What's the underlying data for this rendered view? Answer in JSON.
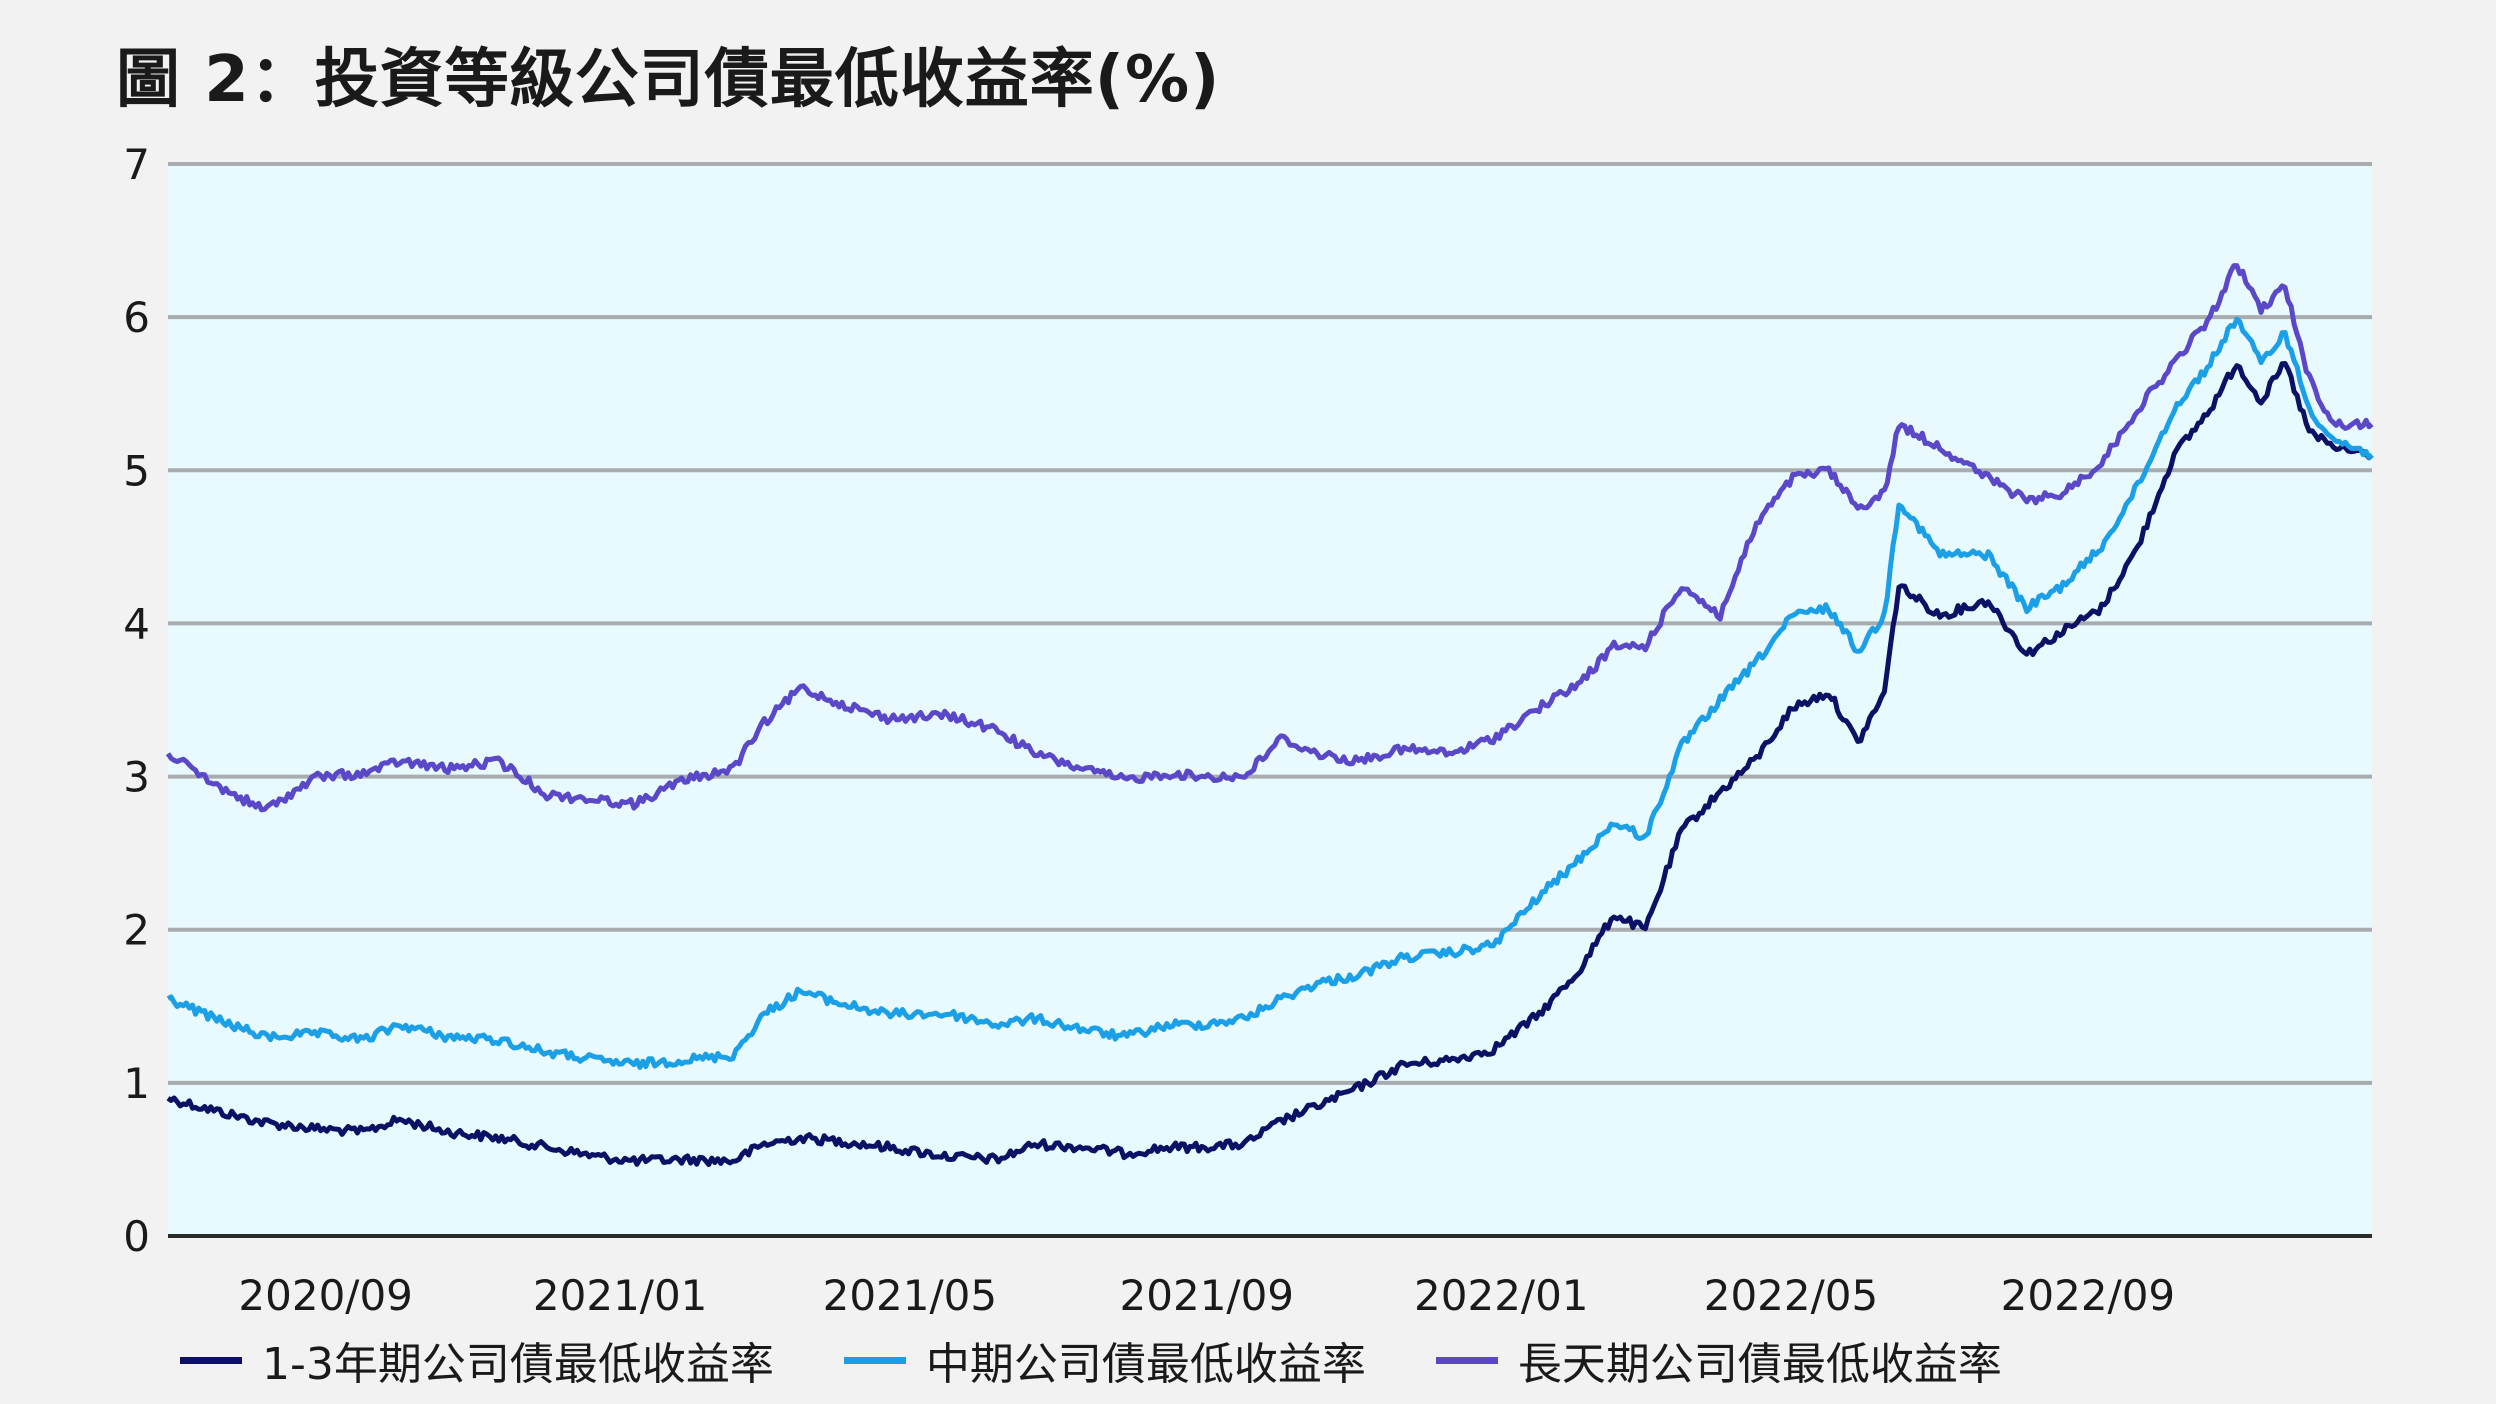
{
  "chart_data": {
    "type": "line",
    "title": "圖 2：投資等級公司債最低收益率(%)",
    "xlabel": "",
    "ylabel": "",
    "ylim": [
      0,
      7
    ],
    "yticks": [
      "0",
      "1",
      "2",
      "3",
      "4",
      "5",
      "6",
      "7"
    ],
    "xlim": [
      "2020-07-01",
      "2022-12-31"
    ],
    "xticks": [
      {
        "date": "2020-09-01",
        "label": "2020/09"
      },
      {
        "date": "2021-01-01",
        "label": "2021/01"
      },
      {
        "date": "2021-05-01",
        "label": "2021/05"
      },
      {
        "date": "2021-09-01",
        "label": "2021/09"
      },
      {
        "date": "2022-01-01",
        "label": "2022/01"
      },
      {
        "date": "2022-05-01",
        "label": "2022/05"
      },
      {
        "date": "2022-09-01",
        "label": "2022/09"
      }
    ],
    "grid": "horizontal",
    "plot_background": "#e8fafd",
    "legend_position": "bottom",
    "series": [
      {
        "name": "1-3年期公司債最低收益率",
        "color": "#0d1166",
        "points": [
          [
            "2020-07-01",
            0.9
          ],
          [
            "2020-07-20",
            0.82
          ],
          [
            "2020-08-10",
            0.74
          ],
          [
            "2020-09-01",
            0.7
          ],
          [
            "2020-09-20",
            0.68
          ],
          [
            "2020-10-05",
            0.76
          ],
          [
            "2020-10-25",
            0.68
          ],
          [
            "2020-11-15",
            0.64
          ],
          [
            "2020-12-05",
            0.58
          ],
          [
            "2020-12-25",
            0.52
          ],
          [
            "2021-01-10",
            0.49
          ],
          [
            "2021-01-31",
            0.5
          ],
          [
            "2021-02-20",
            0.49
          ],
          [
            "2021-03-05",
            0.6
          ],
          [
            "2021-03-20",
            0.64
          ],
          [
            "2021-04-05",
            0.62
          ],
          [
            "2021-04-25",
            0.58
          ],
          [
            "2021-05-20",
            0.52
          ],
          [
            "2021-06-10",
            0.5
          ],
          [
            "2021-06-25",
            0.6
          ],
          [
            "2021-07-15",
            0.58
          ],
          [
            "2021-08-01",
            0.54
          ],
          [
            "2021-08-20",
            0.58
          ],
          [
            "2021-09-01",
            0.58
          ],
          [
            "2021-09-20",
            0.6
          ],
          [
            "2021-10-05",
            0.75
          ],
          [
            "2021-10-20",
            0.85
          ],
          [
            "2021-11-05",
            0.96
          ],
          [
            "2021-11-25",
            1.12
          ],
          [
            "2021-12-15",
            1.15
          ],
          [
            "2022-01-01",
            1.22
          ],
          [
            "2022-01-20",
            1.45
          ],
          [
            "2022-02-05",
            1.72
          ],
          [
            "2022-02-20",
            2.1
          ],
          [
            "2022-03-05",
            2.0
          ],
          [
            "2022-03-20",
            2.65
          ],
          [
            "2022-04-05",
            2.9
          ],
          [
            "2022-04-20",
            3.12
          ],
          [
            "2022-05-05",
            3.45
          ],
          [
            "2022-05-20",
            3.55
          ],
          [
            "2022-06-01",
            3.22
          ],
          [
            "2022-06-12",
            3.55
          ],
          [
            "2022-06-18",
            4.25
          ],
          [
            "2022-07-05",
            4.05
          ],
          [
            "2022-07-25",
            4.15
          ],
          [
            "2022-08-10",
            3.8
          ],
          [
            "2022-08-25",
            3.95
          ],
          [
            "2022-09-10",
            4.1
          ],
          [
            "2022-09-25",
            4.5
          ],
          [
            "2022-10-10",
            5.1
          ],
          [
            "2022-10-25",
            5.4
          ],
          [
            "2022-11-05",
            5.7
          ],
          [
            "2022-11-15",
            5.45
          ],
          [
            "2022-11-25",
            5.7
          ],
          [
            "2022-12-05",
            5.25
          ],
          [
            "2022-12-15",
            5.15
          ],
          [
            "2022-12-31",
            5.1
          ]
        ]
      },
      {
        "name": "中期公司債最低收益率",
        "color": "#1ba0e8",
        "points": [
          [
            "2020-07-01",
            1.55
          ],
          [
            "2020-07-20",
            1.42
          ],
          [
            "2020-08-10",
            1.3
          ],
          [
            "2020-09-01",
            1.32
          ],
          [
            "2020-09-20",
            1.28
          ],
          [
            "2020-10-05",
            1.38
          ],
          [
            "2020-10-25",
            1.3
          ],
          [
            "2020-11-15",
            1.28
          ],
          [
            "2020-12-05",
            1.2
          ],
          [
            "2020-12-25",
            1.15
          ],
          [
            "2021-01-10",
            1.12
          ],
          [
            "2021-01-31",
            1.15
          ],
          [
            "2021-02-20",
            1.18
          ],
          [
            "2021-03-05",
            1.45
          ],
          [
            "2021-03-20",
            1.6
          ],
          [
            "2021-04-05",
            1.52
          ],
          [
            "2021-04-25",
            1.45
          ],
          [
            "2021-05-20",
            1.45
          ],
          [
            "2021-06-10",
            1.38
          ],
          [
            "2021-06-25",
            1.42
          ],
          [
            "2021-07-15",
            1.35
          ],
          [
            "2021-08-01",
            1.3
          ],
          [
            "2021-08-20",
            1.38
          ],
          [
            "2021-09-01",
            1.38
          ],
          [
            "2021-09-20",
            1.42
          ],
          [
            "2021-10-05",
            1.55
          ],
          [
            "2021-10-20",
            1.65
          ],
          [
            "2021-11-05",
            1.7
          ],
          [
            "2021-11-25",
            1.82
          ],
          [
            "2021-12-15",
            1.85
          ],
          [
            "2022-01-01",
            1.9
          ],
          [
            "2022-01-20",
            2.22
          ],
          [
            "2022-02-05",
            2.45
          ],
          [
            "2022-02-20",
            2.7
          ],
          [
            "2022-03-05",
            2.6
          ],
          [
            "2022-03-20",
            3.2
          ],
          [
            "2022-04-05",
            3.5
          ],
          [
            "2022-04-20",
            3.75
          ],
          [
            "2022-05-05",
            4.05
          ],
          [
            "2022-05-20",
            4.1
          ],
          [
            "2022-06-01",
            3.82
          ],
          [
            "2022-06-12",
            4.05
          ],
          [
            "2022-06-18",
            4.8
          ],
          [
            "2022-07-05",
            4.45
          ],
          [
            "2022-07-25",
            4.45
          ],
          [
            "2022-08-10",
            4.1
          ],
          [
            "2022-08-25",
            4.25
          ],
          [
            "2022-09-10",
            4.5
          ],
          [
            "2022-09-25",
            4.9
          ],
          [
            "2022-10-10",
            5.4
          ],
          [
            "2022-10-25",
            5.7
          ],
          [
            "2022-11-05",
            6.0
          ],
          [
            "2022-11-15",
            5.7
          ],
          [
            "2022-11-25",
            5.9
          ],
          [
            "2022-12-05",
            5.4
          ],
          [
            "2022-12-15",
            5.2
          ],
          [
            "2022-12-31",
            5.1
          ]
        ]
      },
      {
        "name": "長天期公司債最低收益率",
        "color": "#5a48c8",
        "points": [
          [
            "2020-07-01",
            3.15
          ],
          [
            "2020-07-20",
            2.95
          ],
          [
            "2020-08-10",
            2.78
          ],
          [
            "2020-09-01",
            3.0
          ],
          [
            "2020-09-20",
            3.02
          ],
          [
            "2020-10-05",
            3.1
          ],
          [
            "2020-10-25",
            3.05
          ],
          [
            "2020-11-15",
            3.1
          ],
          [
            "2020-12-05",
            2.88
          ],
          [
            "2020-12-25",
            2.85
          ],
          [
            "2021-01-10",
            2.82
          ],
          [
            "2021-01-31",
            2.98
          ],
          [
            "2021-02-20",
            3.05
          ],
          [
            "2021-03-05",
            3.35
          ],
          [
            "2021-03-20",
            3.58
          ],
          [
            "2021-04-05",
            3.48
          ],
          [
            "2021-04-25",
            3.38
          ],
          [
            "2021-05-20",
            3.4
          ],
          [
            "2021-06-10",
            3.3
          ],
          [
            "2021-06-25",
            3.15
          ],
          [
            "2021-07-15",
            3.05
          ],
          [
            "2021-08-01",
            2.98
          ],
          [
            "2021-08-20",
            3.02
          ],
          [
            "2021-09-01",
            3.0
          ],
          [
            "2021-09-20",
            3.0
          ],
          [
            "2021-10-05",
            3.25
          ],
          [
            "2021-10-20",
            3.15
          ],
          [
            "2021-11-05",
            3.1
          ],
          [
            "2021-11-25",
            3.18
          ],
          [
            "2021-12-15",
            3.15
          ],
          [
            "2022-01-01",
            3.25
          ],
          [
            "2022-01-20",
            3.45
          ],
          [
            "2022-02-05",
            3.6
          ],
          [
            "2022-02-20",
            3.85
          ],
          [
            "2022-03-05",
            3.85
          ],
          [
            "2022-03-20",
            4.25
          ],
          [
            "2022-04-05",
            4.05
          ],
          [
            "2022-04-20",
            4.65
          ],
          [
            "2022-05-05",
            4.95
          ],
          [
            "2022-05-20",
            5.0
          ],
          [
            "2022-06-01",
            4.75
          ],
          [
            "2022-06-12",
            4.85
          ],
          [
            "2022-06-18",
            5.3
          ],
          [
            "2022-07-05",
            5.15
          ],
          [
            "2022-07-25",
            4.95
          ],
          [
            "2022-08-10",
            4.8
          ],
          [
            "2022-08-25",
            4.85
          ],
          [
            "2022-09-10",
            5.05
          ],
          [
            "2022-09-25",
            5.4
          ],
          [
            "2022-10-10",
            5.7
          ],
          [
            "2022-10-25",
            6.0
          ],
          [
            "2022-11-05",
            6.35
          ],
          [
            "2022-11-15",
            6.05
          ],
          [
            "2022-11-25",
            6.2
          ],
          [
            "2022-12-05",
            5.6
          ],
          [
            "2022-12-15",
            5.3
          ],
          [
            "2022-12-31",
            5.3
          ]
        ]
      }
    ]
  }
}
